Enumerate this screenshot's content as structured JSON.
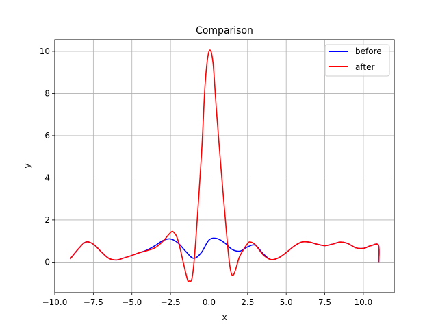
{
  "chart_data": {
    "type": "line",
    "title": "Comparison",
    "xlabel": "x",
    "ylabel": "y",
    "xlim": [
      -10,
      12
    ],
    "ylim": [
      -1.45,
      10.55
    ],
    "xticks": [
      -10,
      -7.5,
      -5,
      -2.5,
      0,
      2.5,
      5,
      7.5,
      10
    ],
    "xtick_labels": [
      "−10.0",
      "−7.5",
      "−5.0",
      "−2.5",
      "0.0",
      "2.5",
      "5.0",
      "7.5",
      "10.0"
    ],
    "yticks": [
      0,
      2,
      4,
      6,
      8,
      10
    ],
    "ytick_labels": [
      "0",
      "2",
      "4",
      "6",
      "8",
      "10"
    ],
    "grid": true,
    "legend_position": "top-right",
    "series": [
      {
        "name": "before",
        "color": "#0000ff",
        "x": [
          -9,
          -8.5,
          -8,
          -7.5,
          -7,
          -6.5,
          -6,
          -5.5,
          -5,
          -4.5,
          -4,
          -3.5,
          -3,
          -2.5,
          -2,
          -1.5,
          -1,
          -0.5,
          0,
          0.5,
          1,
          1.5,
          2,
          2.5,
          3,
          3.5,
          4,
          4.5,
          5,
          5.5,
          6,
          6.5,
          7,
          7.5,
          8,
          8.5,
          9,
          9.5,
          10,
          10.5,
          10.98,
          11
        ],
        "y": [
          0.15,
          0.6,
          0.95,
          0.85,
          0.5,
          0.18,
          0.1,
          0.2,
          0.32,
          0.45,
          0.58,
          0.78,
          1.02,
          1.1,
          0.9,
          0.5,
          0.18,
          0.45,
          1.05,
          1.12,
          0.92,
          0.6,
          0.52,
          0.72,
          0.8,
          0.4,
          0.12,
          0.2,
          0.45,
          0.75,
          0.95,
          0.95,
          0.85,
          0.78,
          0.85,
          0.95,
          0.88,
          0.68,
          0.65,
          0.78,
          0.8,
          0.0
        ]
      },
      {
        "name": "after",
        "color": "#ff0000",
        "x": [
          -9,
          -8.5,
          -8,
          -7.5,
          -7,
          -6.5,
          -6,
          -5.5,
          -5,
          -4.5,
          -4,
          -3.5,
          -3,
          -2.5,
          -2.3,
          -2,
          -1.5,
          -1.3,
          -1,
          -0.5,
          -0.25,
          0,
          0.25,
          0.5,
          1,
          1.45,
          2,
          2.5,
          2.7,
          3,
          3.5,
          4,
          4.5,
          5,
          5.5,
          6,
          6.5,
          7,
          7.5,
          8,
          8.5,
          9,
          9.5,
          10,
          10.5,
          10.98,
          11
        ],
        "y": [
          0.15,
          0.6,
          0.95,
          0.85,
          0.5,
          0.18,
          0.1,
          0.2,
          0.32,
          0.45,
          0.55,
          0.68,
          0.98,
          1.4,
          1.42,
          1.0,
          -0.55,
          -0.9,
          -0.2,
          5.0,
          8.5,
          10.0,
          9.5,
          7.0,
          2.5,
          -0.55,
          0.3,
          0.88,
          0.95,
          0.82,
          0.35,
          0.12,
          0.2,
          0.45,
          0.75,
          0.95,
          0.95,
          0.85,
          0.78,
          0.85,
          0.95,
          0.88,
          0.68,
          0.65,
          0.78,
          0.8,
          0.0
        ]
      }
    ]
  }
}
